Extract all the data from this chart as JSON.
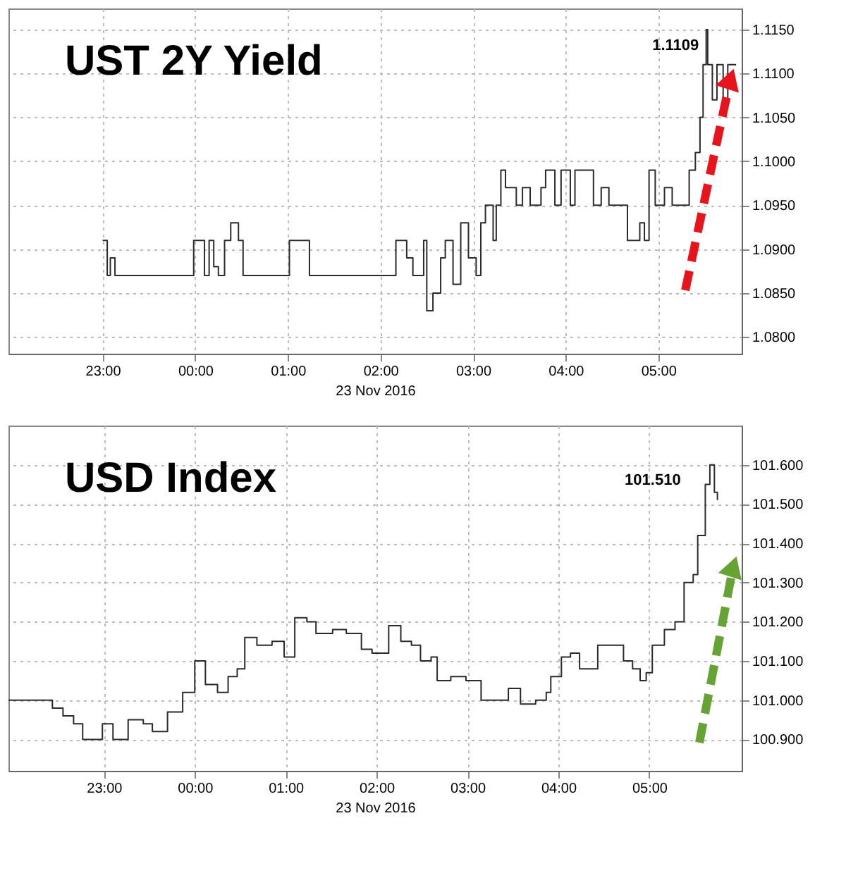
{
  "chart_data": [
    {
      "type": "step",
      "title": "UST 2Y Yield",
      "xlabel": "23 Nov 2016",
      "series": [
        {
          "color": "#2b2b2b",
          "x": [
            "2016-11-22T23:00",
            "2016-11-22T23:03",
            "2016-11-22T23:05",
            "2016-11-22T23:08",
            "2016-11-22T23:59",
            "2016-11-23T00:06",
            "2016-11-23T00:09",
            "2016-11-23T00:12",
            "2016-11-23T00:15",
            "2016-11-23T00:19",
            "2016-11-23T00:23",
            "2016-11-23T00:28",
            "2016-11-23T00:31",
            "2016-11-23T01:00",
            "2016-11-23T01:01",
            "2016-11-23T01:14",
            "2016-11-23T02:08",
            "2016-11-23T02:10",
            "2016-11-23T02:17",
            "2016-11-23T02:21",
            "2016-11-23T02:28",
            "2016-11-23T02:30",
            "2016-11-23T02:34",
            "2016-11-23T02:39",
            "2016-11-23T02:42",
            "2016-11-23T02:47",
            "2016-11-23T02:52",
            "2016-11-23T02:57",
            "2016-11-23T03:02",
            "2016-11-23T03:05",
            "2016-11-23T03:08",
            "2016-11-23T03:13",
            "2016-11-23T03:15",
            "2016-11-23T03:18",
            "2016-11-23T03:21",
            "2016-11-23T03:28",
            "2016-11-23T03:32",
            "2016-11-23T03:37",
            "2016-11-23T03:44",
            "2016-11-23T03:47",
            "2016-11-23T03:53",
            "2016-11-23T03:57",
            "2016-11-23T04:03",
            "2016-11-23T04:06",
            "2016-11-23T04:18",
            "2016-11-23T04:23",
            "2016-11-23T04:28",
            "2016-11-23T04:40",
            "2016-11-23T04:48",
            "2016-11-23T04:51",
            "2016-11-23T04:54",
            "2016-11-23T04:58",
            "2016-11-23T05:04",
            "2016-11-23T05:09",
            "2016-11-23T05:20",
            "2016-11-23T05:24",
            "2016-11-23T05:27",
            "2016-11-23T05:29",
            "2016-11-23T05:31",
            "2016-11-23T05:32",
            "2016-11-23T05:35",
            "2016-11-23T05:38",
            "2016-11-23T05:42",
            "2016-11-23T05:45",
            "2016-11-23T05:50"
          ],
          "values": [
            1.091,
            1.087,
            1.089,
            1.087,
            1.091,
            1.087,
            1.091,
            1.088,
            1.087,
            1.091,
            1.093,
            1.091,
            1.087,
            1.087,
            1.091,
            1.087,
            1.087,
            1.091,
            1.089,
            1.087,
            1.091,
            1.083,
            1.085,
            1.089,
            1.091,
            1.086,
            1.093,
            1.089,
            1.087,
            1.093,
            1.095,
            1.091,
            1.095,
            1.099,
            1.097,
            1.095,
            1.097,
            1.095,
            1.097,
            1.099,
            1.095,
            1.099,
            1.095,
            1.099,
            1.095,
            1.097,
            1.095,
            1.091,
            1.093,
            1.091,
            1.099,
            1.095,
            1.097,
            1.095,
            1.099,
            1.101,
            1.105,
            1.111,
            1.115,
            1.111,
            1.107,
            1.111,
            1.107,
            1.111,
            1.1109
          ]
        }
      ],
      "xlim": [
        "2016-11-22T21:59",
        "2016-11-23T05:54"
      ],
      "xticks": [
        {
          "value": "2016-11-22T23:00",
          "label": "23:00"
        },
        {
          "value": "2016-11-23T00:00",
          "label": "00:00"
        },
        {
          "value": "2016-11-23T01:00",
          "label": "01:00"
        },
        {
          "value": "2016-11-23T02:00",
          "label": "02:00"
        },
        {
          "value": "2016-11-23T03:00",
          "label": "03:00"
        },
        {
          "value": "2016-11-23T04:00",
          "label": "04:00"
        },
        {
          "value": "2016-11-23T05:00",
          "label": "05:00"
        }
      ],
      "ylim": [
        1.0781,
        1.1174
      ],
      "yticks": [
        {
          "value": 1.08,
          "label": "1.0800"
        },
        {
          "value": 1.085,
          "label": "1.0850"
        },
        {
          "value": 1.09,
          "label": "1.0900"
        },
        {
          "value": 1.095,
          "label": "1.0950"
        },
        {
          "value": 1.1,
          "label": "1.1000"
        },
        {
          "value": 1.105,
          "label": "1.1050"
        },
        {
          "value": 1.11,
          "label": "1.1100"
        },
        {
          "value": 1.115,
          "label": "1.1150"
        }
      ],
      "annotations": [
        {
          "text": "1.1109",
          "x": "2016-11-23T05:50",
          "y": 1.1109
        }
      ],
      "grid": true,
      "line_style": "solid",
      "marker": "none"
    },
    {
      "type": "step",
      "title": "USD Index",
      "xlabel": "23 Nov 2016",
      "series": [
        {
          "color": "#2b2b2b",
          "x": [
            "2016-11-22T21:57",
            "2016-11-22T22:17",
            "2016-11-22T22:26",
            "2016-11-22T22:33",
            "2016-11-22T22:40",
            "2016-11-22T22:46",
            "2016-11-22T22:53",
            "2016-11-22T22:59",
            "2016-11-22T23:06",
            "2016-11-22T23:16",
            "2016-11-22T23:26",
            "2016-11-22T23:32",
            "2016-11-22T23:42",
            "2016-11-22T23:52",
            "2016-11-23T00:00",
            "2016-11-23T00:07",
            "2016-11-23T00:15",
            "2016-11-23T00:22",
            "2016-11-23T00:28",
            "2016-11-23T00:33",
            "2016-11-23T00:41",
            "2016-11-23T00:51",
            "2016-11-23T00:59",
            "2016-11-23T01:06",
            "2016-11-23T01:14",
            "2016-11-23T01:20",
            "2016-11-23T01:31",
            "2016-11-23T01:40",
            "2016-11-23T01:50",
            "2016-11-23T01:57",
            "2016-11-23T02:08",
            "2016-11-23T02:16",
            "2016-11-23T02:23",
            "2016-11-23T02:29",
            "2016-11-23T02:36",
            "2016-11-23T02:40",
            "2016-11-23T02:49",
            "2016-11-23T02:59",
            "2016-11-23T03:09",
            "2016-11-23T03:19",
            "2016-11-23T03:27",
            "2016-11-23T03:35",
            "2016-11-23T03:45",
            "2016-11-23T03:52",
            "2016-11-23T03:55",
            "2016-11-23T04:02",
            "2016-11-23T04:08",
            "2016-11-23T04:14",
            "2016-11-23T04:26",
            "2016-11-23T04:34",
            "2016-11-23T04:43",
            "2016-11-23T04:49",
            "2016-11-23T04:54",
            "2016-11-23T04:58",
            "2016-11-23T05:02",
            "2016-11-23T05:10",
            "2016-11-23T05:17",
            "2016-11-23T05:23",
            "2016-11-23T05:29",
            "2016-11-23T05:32",
            "2016-11-23T05:37",
            "2016-11-23T05:40",
            "2016-11-23T05:43",
            "2016-11-23T05:45"
          ],
          "values": [
            101.0,
            101.0,
            100.98,
            100.96,
            100.94,
            100.9,
            100.9,
            100.94,
            100.9,
            100.95,
            100.94,
            100.92,
            100.97,
            101.02,
            101.1,
            101.04,
            101.02,
            101.06,
            101.08,
            101.16,
            101.14,
            101.15,
            101.11,
            101.21,
            101.2,
            101.17,
            101.18,
            101.17,
            101.13,
            101.12,
            101.19,
            101.15,
            101.14,
            101.1,
            101.11,
            101.05,
            101.06,
            101.05,
            101.0,
            101.0,
            101.03,
            100.99,
            101.0,
            101.02,
            101.06,
            101.11,
            101.12,
            101.08,
            101.14,
            101.14,
            101.1,
            101.08,
            101.05,
            101.07,
            101.14,
            101.18,
            101.2,
            101.3,
            101.32,
            101.42,
            101.55,
            101.6,
            101.53,
            101.51
          ]
        }
      ],
      "xlim": [
        "2016-11-22T21:57",
        "2016-11-23T06:01"
      ],
      "xticks": [
        {
          "value": "2016-11-22T23:00",
          "label": "23:00"
        },
        {
          "value": "2016-11-23T00:00",
          "label": "00:00"
        },
        {
          "value": "2016-11-23T01:00",
          "label": "01:00"
        },
        {
          "value": "2016-11-23T02:00",
          "label": "02:00"
        },
        {
          "value": "2016-11-23T03:00",
          "label": "03:00"
        },
        {
          "value": "2016-11-23T04:00",
          "label": "04:00"
        },
        {
          "value": "2016-11-23T05:00",
          "label": "05:00"
        }
      ],
      "ylim": [
        100.82,
        101.7
      ],
      "yticks": [
        {
          "value": 100.9,
          "label": "100.900"
        },
        {
          "value": 101.0,
          "label": "101.000"
        },
        {
          "value": 101.1,
          "label": "101.100"
        },
        {
          "value": 101.2,
          "label": "101.200"
        },
        {
          "value": 101.3,
          "label": "101.300"
        },
        {
          "value": 101.4,
          "label": "101.400"
        },
        {
          "value": 101.5,
          "label": "101.500"
        },
        {
          "value": 101.6,
          "label": "101.600"
        }
      ],
      "annotations": [
        {
          "text": "101.510",
          "x": "2016-11-23T05:45",
          "y": 101.51
        }
      ],
      "grid": true,
      "line_style": "solid",
      "marker": "none"
    }
  ]
}
